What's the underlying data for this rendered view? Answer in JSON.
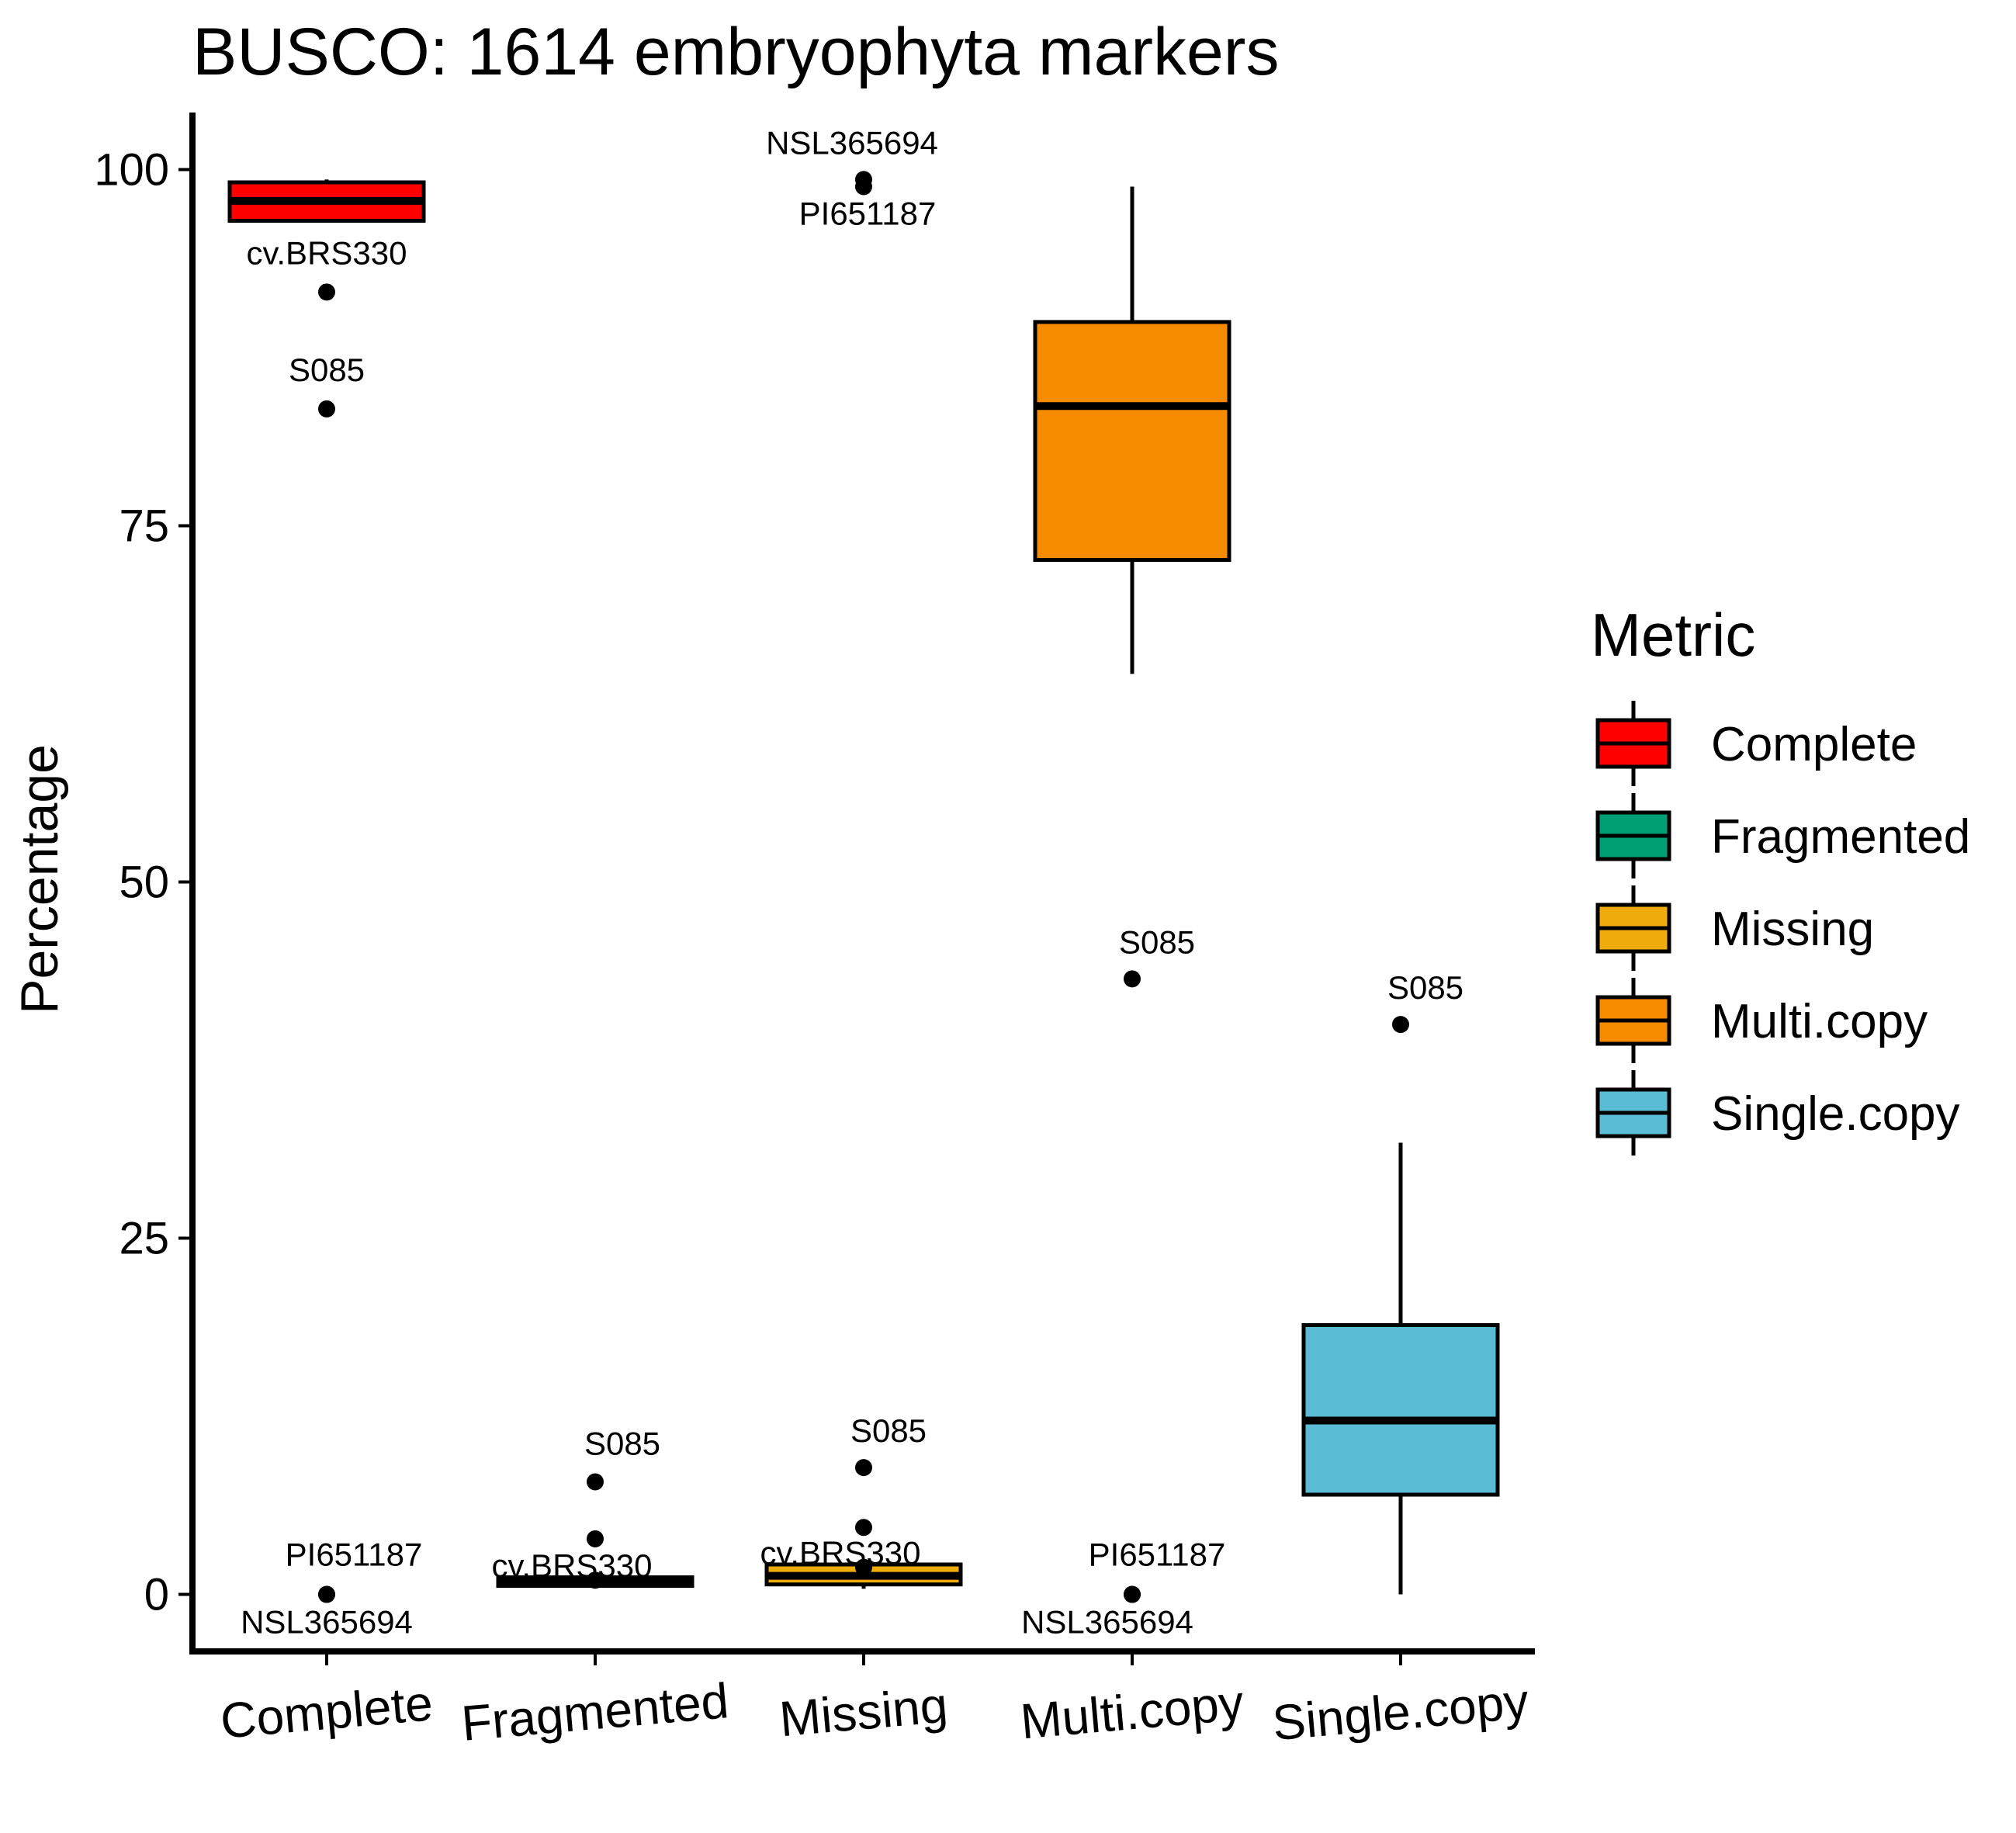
{
  "chart_data": {
    "type": "box",
    "title": "BUSCO: 1614 embryophyta markers",
    "xlabel": "",
    "ylabel": "Percentage",
    "ylim": [
      -4,
      104
    ],
    "yticks": [
      0,
      25,
      50,
      75,
      100
    ],
    "grid": false,
    "legend": {
      "title": "Metric",
      "position": "right"
    },
    "categories": [
      "Complete",
      "Fragmented",
      "Missing",
      "Multi.copy",
      "Single.copy"
    ],
    "boxes": [
      {
        "category": "Complete",
        "color": "#FF0000",
        "whisker_low": 96.4,
        "q1": 96.4,
        "median": 97.8,
        "q3": 99.1,
        "whisker_high": 99.3,
        "outliers": [
          {
            "y": 91.4,
            "label": "cv.BRS330"
          },
          {
            "y": 83.2,
            "label": "S085"
          },
          {
            "y": 0.0,
            "label": "PI651187"
          },
          {
            "y": 0.0,
            "label": "NSL365694"
          }
        ]
      },
      {
        "category": "Fragmented",
        "color": "#009E73",
        "whisker_low": 0.5,
        "q1": 0.6,
        "median": 0.8,
        "q3": 1.2,
        "whisker_high": 1.3,
        "outliers": [
          {
            "y": 7.9,
            "label": "S085"
          },
          {
            "y": 3.9,
            "label": ""
          },
          {
            "y": 1.0,
            "label": "cv.BRS330"
          }
        ]
      },
      {
        "category": "Missing",
        "color": "#F0AC0C",
        "whisker_low": 0.4,
        "q1": 0.7,
        "median": 1.3,
        "q3": 2.1,
        "whisker_high": 2.3,
        "outliers": [
          {
            "y": 8.9,
            "label": "S085"
          },
          {
            "y": 4.7,
            "label": ""
          },
          {
            "y": 1.9,
            "label": "cv.BRS330"
          },
          {
            "y": 99.3,
            "label": "NSL365694"
          },
          {
            "y": 98.8,
            "label": "PI651187"
          }
        ]
      },
      {
        "category": "Multi.copy",
        "color": "#F68B00",
        "whisker_low": 64.6,
        "q1": 72.6,
        "median": 83.4,
        "q3": 89.3,
        "whisker_high": 98.8,
        "outliers": [
          {
            "y": 43.2,
            "label": "S085"
          },
          {
            "y": 0.0,
            "label": "PI651187"
          },
          {
            "y": 0.0,
            "label": "NSL365694"
          }
        ]
      },
      {
        "category": "Single.copy",
        "color": "#5BBCD5",
        "whisker_low": 0.0,
        "q1": 7.0,
        "median": 12.2,
        "q3": 18.9,
        "whisker_high": 31.7,
        "outliers": [
          {
            "y": 40.0,
            "label": "S085"
          }
        ]
      }
    ],
    "legend_entries": [
      {
        "label": "Complete",
        "color": "#FF0000"
      },
      {
        "label": "Fragmented",
        "color": "#009E73"
      },
      {
        "label": "Missing",
        "color": "#F0AC0C"
      },
      {
        "label": "Multi.copy",
        "color": "#F68B00"
      },
      {
        "label": "Single.copy",
        "color": "#5BBCD5"
      }
    ]
  }
}
